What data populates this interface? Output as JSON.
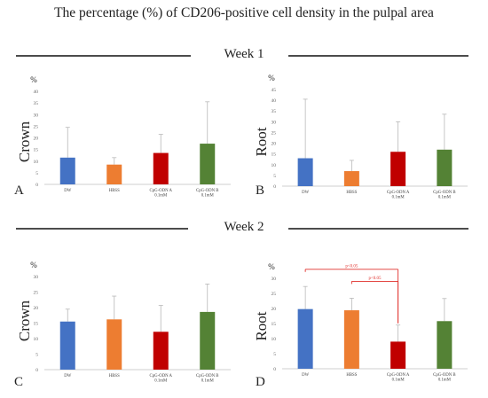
{
  "title": "The percentage (%) of CD206-positive cell density in the pulpal area",
  "week_labels": [
    "Week 1",
    "Week 2"
  ],
  "colors": {
    "DW": "#4472c4",
    "HBSS": "#ed7d31",
    "CpG-ODN A": "#c00000",
    "CpG-ODN B": "#548235",
    "sig": "#e0302c",
    "axis": "#bfbfbf"
  },
  "chart_data": [
    {
      "type": "bar",
      "panel_letter": "A",
      "week": "Week 1",
      "ylabel": "Crown",
      "unit": "%",
      "categories": [
        "DW",
        "HBSS",
        "CpG-ODN A\n0.1mM",
        "CpG-ODN B\n0.1mM"
      ],
      "values": [
        11.5,
        8.5,
        13.5,
        17.5
      ],
      "errors": [
        13,
        3,
        8,
        18
      ],
      "ylim": [
        0,
        40
      ],
      "yticks": [
        0,
        5,
        10,
        15,
        20,
        25,
        30,
        35,
        40
      ],
      "significance": []
    },
    {
      "type": "bar",
      "panel_letter": "B",
      "week": "Week 1",
      "ylabel": "Root",
      "unit": "%",
      "categories": [
        "DW",
        "HBSS",
        "CpG-ODN A\n0.1mM",
        "CpG-ODN B\n0.1mM"
      ],
      "values": [
        13,
        7,
        16,
        17
      ],
      "errors": [
        27.5,
        5,
        14,
        16.5
      ],
      "ylim": [
        0,
        45
      ],
      "yticks": [
        0,
        5,
        10,
        15,
        20,
        25,
        30,
        35,
        40,
        45
      ],
      "significance": []
    },
    {
      "type": "bar",
      "panel_letter": "C",
      "week": "Week 2",
      "ylabel": "Crown",
      "unit": "%",
      "categories": [
        "DW",
        "HBSS",
        "CpG-ODN A\n0.1mM",
        "CpG-ODN B\n0.1mM"
      ],
      "values": [
        15.5,
        16.2,
        12.2,
        18.6
      ],
      "errors": [
        4,
        7.5,
        8.5,
        9
      ],
      "ylim": [
        0,
        30
      ],
      "yticks": [
        0,
        5,
        10,
        15,
        20,
        25,
        30
      ],
      "significance": []
    },
    {
      "type": "bar",
      "panel_letter": "D",
      "week": "Week 2",
      "ylabel": "Root",
      "unit": "%",
      "categories": [
        "DW",
        "HBSS",
        "CpG-ODN A\n0.1mM",
        "CpG-ODN B\n0.1mM"
      ],
      "values": [
        19.8,
        19.4,
        9,
        15.8
      ],
      "errors": [
        7.5,
        4,
        5.5,
        7.5
      ],
      "ylim": [
        0,
        30
      ],
      "yticks": [
        0,
        5,
        10,
        15,
        20,
        25,
        30
      ],
      "significance": [
        {
          "from": 0,
          "to": 2,
          "label": "p<0.05",
          "y": 33
        },
        {
          "from": 1,
          "to": 2,
          "label": "p<0.05",
          "y": 29
        }
      ]
    }
  ]
}
